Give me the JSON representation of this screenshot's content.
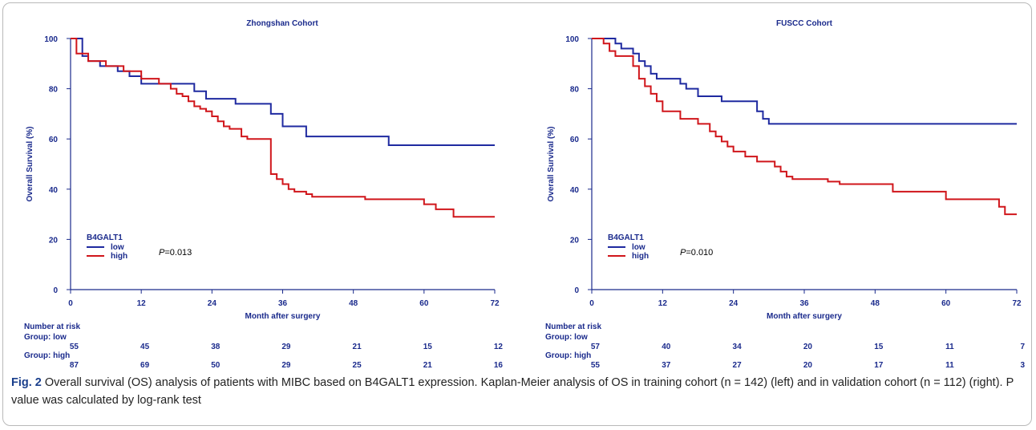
{
  "colors": {
    "low": "#1f2aa0",
    "high": "#d0161b",
    "axis": "#1a2a8c"
  },
  "chart_data": [
    {
      "type": "line",
      "title": "Zhongshan Cohort",
      "xlabel": "Month after surgery",
      "ylabel": "Overall Survival (%)",
      "xlim": [
        0,
        72
      ],
      "ylim": [
        0,
        100
      ],
      "xticks": [
        0,
        12,
        24,
        36,
        48,
        60,
        72
      ],
      "yticks": [
        0,
        20,
        40,
        60,
        80,
        100
      ],
      "legend": {
        "title": "B4GALT1",
        "placement": "bottom-left"
      },
      "pvalue_label": "P",
      "pvalue_text": "=0.013",
      "series": [
        {
          "name": "low",
          "color": "#1f2aa0",
          "x": [
            0,
            2,
            3,
            5,
            8,
            10,
            12,
            21,
            23,
            28,
            34,
            36,
            40,
            54,
            72
          ],
          "y": [
            100,
            93,
            91,
            89,
            87,
            85,
            82,
            79,
            76,
            74,
            70,
            65,
            61,
            57.5,
            57.5
          ]
        },
        {
          "name": "high",
          "color": "#d0161b",
          "x": [
            0,
            1,
            3,
            6,
            9,
            12,
            15,
            17,
            18,
            19,
            20,
            21,
            22,
            23,
            24,
            25,
            26,
            27,
            29,
            30,
            34,
            35,
            36,
            37,
            38,
            40,
            41,
            45,
            50,
            55,
            60,
            62,
            65,
            72
          ],
          "y": [
            100,
            94,
            91,
            89,
            87,
            84,
            82,
            80,
            78,
            77,
            75,
            73,
            72,
            71,
            69,
            67,
            65,
            64,
            61,
            60,
            46,
            44,
            42,
            40,
            39,
            38,
            37,
            37,
            36,
            36,
            34,
            32,
            29,
            29
          ]
        }
      ],
      "risk_table": {
        "heading": "Number at risk",
        "groups": [
          {
            "label": "Group: low",
            "values": [
              55,
              45,
              38,
              29,
              21,
              15,
              12
            ]
          },
          {
            "label": "Group: high",
            "values": [
              87,
              69,
              50,
              29,
              25,
              21,
              16
            ]
          }
        ]
      }
    },
    {
      "type": "line",
      "title": "FUSCC Cohort",
      "xlabel": "Month after surgery",
      "ylabel": "Overall Survival (%)",
      "xlim": [
        0,
        72
      ],
      "ylim": [
        0,
        100
      ],
      "xticks": [
        0,
        12,
        24,
        36,
        48,
        60,
        72
      ],
      "yticks": [
        0,
        20,
        40,
        60,
        80,
        100
      ],
      "legend": {
        "title": "B4GALT1",
        "placement": "bottom-left"
      },
      "pvalue_label": "P",
      "pvalue_text": "=0.010",
      "series": [
        {
          "name": "low",
          "color": "#1f2aa0",
          "x": [
            0,
            4,
            5,
            7,
            8,
            9,
            10,
            11,
            13,
            15,
            16,
            18,
            22,
            28,
            29,
            30,
            72
          ],
          "y": [
            100,
            98,
            96,
            94,
            91,
            89,
            86,
            84,
            84,
            82,
            80,
            77,
            75,
            71,
            68,
            66,
            66
          ]
        },
        {
          "name": "high",
          "color": "#d0161b",
          "x": [
            0,
            2,
            3,
            4,
            7,
            8,
            9,
            10,
            11,
            12,
            15,
            18,
            20,
            21,
            22,
            23,
            24,
            26,
            28,
            29,
            31,
            32,
            33,
            34,
            35,
            36,
            40,
            42,
            51,
            56,
            60,
            66,
            68,
            69,
            70,
            72
          ],
          "y": [
            100,
            98,
            95,
            93,
            89,
            84,
            81,
            78,
            75,
            71,
            68,
            66,
            63,
            61,
            59,
            57,
            55,
            53,
            51,
            51,
            49,
            47,
            45,
            44,
            44,
            44,
            43,
            42,
            39,
            39,
            36,
            36,
            36,
            33,
            30,
            30
          ]
        }
      ],
      "risk_table": {
        "heading": "Number at risk",
        "groups": [
          {
            "label": "Group: low",
            "values": [
              57,
              40,
              34,
              20,
              15,
              11,
              7
            ]
          },
          {
            "label": "Group: high",
            "values": [
              55,
              37,
              27,
              20,
              17,
              11,
              3
            ]
          }
        ]
      }
    }
  ],
  "caption": {
    "fig_label": "Fig. 2",
    "text": " Overall survival (OS) analysis of patients with MIBC based on B4GALT1 expression. Kaplan-Meier analysis of OS in training cohort (n = 142) (left) and in validation cohort (n = 112) (right). P value was calculated by log-rank test"
  }
}
